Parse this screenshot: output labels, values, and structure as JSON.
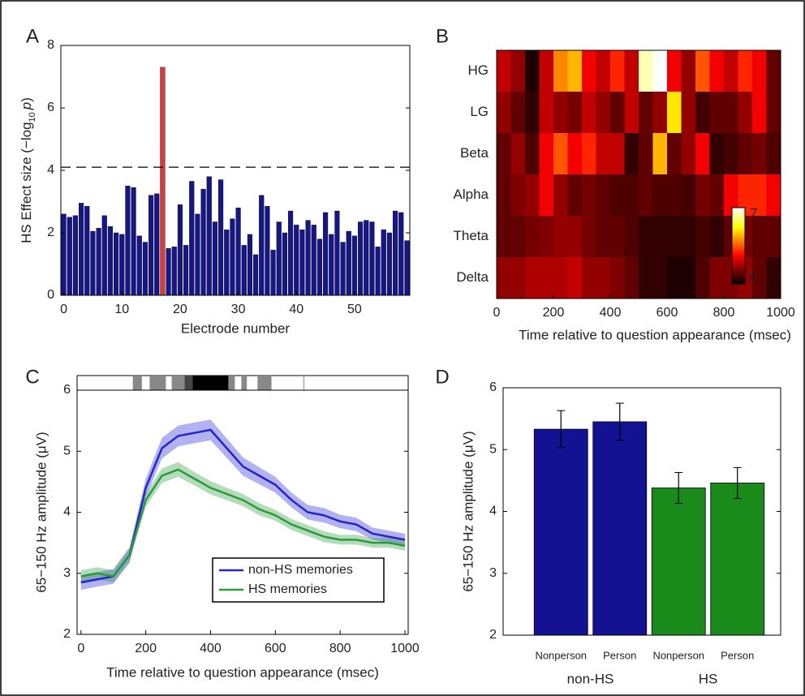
{
  "chart_data": [
    {
      "type": "bar",
      "panel_label": "A",
      "ylabel_parts": [
        "HS Effect size (−log",
        "10",
        "p",
        ")"
      ],
      "xlabel": "Electrode number",
      "x": [
        0,
        1,
        2,
        3,
        4,
        5,
        6,
        7,
        8,
        9,
        10,
        11,
        12,
        13,
        14,
        15,
        16,
        17,
        18,
        19,
        20,
        21,
        22,
        23,
        24,
        25,
        26,
        27,
        28,
        29,
        30,
        31,
        32,
        33,
        34,
        35,
        36,
        37,
        38,
        39,
        40,
        41,
        42,
        43,
        44,
        45,
        46,
        47,
        48,
        49,
        50,
        51,
        52,
        53,
        54,
        55,
        56,
        57,
        58,
        59
      ],
      "values": [
        2.6,
        2.5,
        2.55,
        2.95,
        2.85,
        2.05,
        2.15,
        2.55,
        2.2,
        2.0,
        1.95,
        3.5,
        3.45,
        1.9,
        1.7,
        3.2,
        3.25,
        7.3,
        1.5,
        1.55,
        2.9,
        1.6,
        3.65,
        2.6,
        3.4,
        3.8,
        2.35,
        3.7,
        2.1,
        2.45,
        2.8,
        1.6,
        1.95,
        1.3,
        3.2,
        2.85,
        1.45,
        2.35,
        2.0,
        2.7,
        2.25,
        2.1,
        2.4,
        2.25,
        1.8,
        2.65,
        1.95,
        2.7,
        1.7,
        2.05,
        1.9,
        2.35,
        2.4,
        2.35,
        1.55,
        2.1,
        2.0,
        2.7,
        2.65,
        1.75
      ],
      "colors": [
        "#15158c",
        "#15158c",
        "#15158c",
        "#15158c",
        "#15158c",
        "#15158c",
        "#15158c",
        "#15158c",
        "#15158c",
        "#15158c",
        "#15158c",
        "#15158c",
        "#15158c",
        "#15158c",
        "#15158c",
        "#15158c",
        "#15158c",
        "#d93a3a",
        "#15158c",
        "#15158c",
        "#15158c",
        "#15158c",
        "#15158c",
        "#15158c",
        "#15158c",
        "#15158c",
        "#15158c",
        "#15158c",
        "#15158c",
        "#15158c",
        "#15158c",
        "#15158c",
        "#15158c",
        "#15158c",
        "#15158c",
        "#15158c",
        "#15158c",
        "#15158c",
        "#15158c",
        "#15158c",
        "#15158c",
        "#15158c",
        "#15158c",
        "#15158c",
        "#15158c",
        "#15158c",
        "#15158c",
        "#15158c",
        "#15158c",
        "#15158c",
        "#15158c",
        "#15158c",
        "#15158c",
        "#15158c",
        "#15158c",
        "#15158c",
        "#15158c",
        "#15158c",
        "#15158c",
        "#15158c"
      ],
      "xlim": [
        -0.5,
        59.5
      ],
      "xticks": [
        0,
        10,
        20,
        30,
        40,
        50
      ],
      "ylim": [
        0,
        8
      ],
      "yticks": [
        0,
        2,
        4,
        6,
        8
      ],
      "threshold": 4.1
    },
    {
      "type": "heatmap",
      "panel_label": "B",
      "rows": [
        "HG",
        "LG",
        "Beta",
        "Alpha",
        "Theta",
        "Delta"
      ],
      "x": [
        0,
        50,
        100,
        150,
        200,
        250,
        300,
        350,
        400,
        450,
        500,
        550,
        600,
        650,
        700,
        750,
        800,
        850,
        900,
        950
      ],
      "values": [
        [
          2,
          1.5,
          0.3,
          2,
          4,
          4.5,
          2.5,
          2,
          3,
          2,
          6.5,
          7,
          2.5,
          1.5,
          3.5,
          2.5,
          2,
          3,
          2.5,
          1
        ],
        [
          1.5,
          1,
          0.5,
          2,
          1.5,
          1.2,
          2,
          1.5,
          1,
          2,
          1,
          1.5,
          5,
          1.5,
          0.7,
          1,
          1,
          1.5,
          2.5,
          1
        ],
        [
          1,
          1.5,
          0.8,
          2.5,
          3.5,
          2.5,
          3,
          2,
          2,
          0.5,
          1,
          4.5,
          1,
          1.5,
          2.5,
          0.5,
          0.7,
          1,
          1.2,
          0.8
        ],
        [
          1,
          1.3,
          1.5,
          2.5,
          1.5,
          1,
          1.2,
          1,
          0.8,
          0.8,
          1,
          0.8,
          0.8,
          0.7,
          1.2,
          1,
          2.5,
          3,
          3,
          2.5
        ],
        [
          1,
          1,
          1.2,
          1.3,
          1.5,
          1.5,
          1.2,
          1,
          1,
          0.8,
          0.5,
          0.5,
          0.5,
          0.5,
          0.7,
          0.5,
          1,
          1.2,
          1,
          1
        ],
        [
          1.5,
          1.5,
          1.8,
          1.8,
          1.8,
          2,
          1.5,
          1.5,
          1.3,
          1,
          0.5,
          0.5,
          0.3,
          0.3,
          0.8,
          1.3,
          1.3,
          1.5,
          1,
          0.5
        ]
      ],
      "xlim": [
        0,
        1000
      ],
      "xticks": [
        0,
        200,
        400,
        600,
        800,
        1000
      ],
      "xlabel": "Time relative to question appearance (msec)",
      "colormap": "hot",
      "colorbar": {
        "lim": [
          0,
          7
        ],
        "ticks": [
          0,
          7
        ]
      }
    },
    {
      "type": "line",
      "panel_label": "C",
      "x": [
        0,
        50,
        100,
        150,
        200,
        250,
        300,
        350,
        400,
        450,
        500,
        550,
        600,
        650,
        700,
        750,
        800,
        850,
        900,
        950,
        1000
      ],
      "series": [
        {
          "name": "non-HS memories",
          "color": "#2323d6",
          "values": [
            2.85,
            2.9,
            2.95,
            3.3,
            4.4,
            5.05,
            5.25,
            5.3,
            5.35,
            5.05,
            4.75,
            4.6,
            4.45,
            4.2,
            4.0,
            3.95,
            3.85,
            3.8,
            3.65,
            3.6,
            3.55
          ],
          "error": [
            0.12,
            0.12,
            0.12,
            0.13,
            0.15,
            0.17,
            0.17,
            0.17,
            0.17,
            0.16,
            0.15,
            0.14,
            0.13,
            0.12,
            0.12,
            0.12,
            0.11,
            0.11,
            0.1,
            0.1,
            0.1
          ]
        },
        {
          "name": "HS memories",
          "color": "#2a9a3a",
          "values": [
            2.95,
            3.0,
            2.95,
            3.3,
            4.2,
            4.6,
            4.7,
            4.55,
            4.4,
            4.3,
            4.2,
            4.05,
            3.95,
            3.8,
            3.7,
            3.6,
            3.55,
            3.55,
            3.5,
            3.5,
            3.45
          ],
          "error": [
            0.1,
            0.1,
            0.1,
            0.1,
            0.11,
            0.12,
            0.12,
            0.11,
            0.11,
            0.1,
            0.1,
            0.1,
            0.09,
            0.09,
            0.09,
            0.09,
            0.08,
            0.08,
            0.08,
            0.08,
            0.08
          ]
        }
      ],
      "xlim": [
        -12,
        1010
      ],
      "xticks": [
        0,
        200,
        400,
        600,
        800,
        1000
      ],
      "ylim": [
        2,
        6
      ],
      "yticks": [
        2,
        3,
        4,
        5,
        6
      ],
      "xlabel": "Time relative to question appearance (msec)",
      "ylabel": "65−150 Hz amplitude (μV)",
      "significance": [
        {
          "start": 160,
          "end": 188,
          "color": "#888888"
        },
        {
          "start": 212,
          "end": 262,
          "color": "#888888"
        },
        {
          "start": 280,
          "end": 320,
          "color": "#888888"
        },
        {
          "start": 320,
          "end": 345,
          "color": "#444444"
        },
        {
          "start": 345,
          "end": 455,
          "color": "#000000"
        },
        {
          "start": 455,
          "end": 475,
          "color": "#888888"
        },
        {
          "start": 495,
          "end": 512,
          "color": "#888888"
        },
        {
          "start": 545,
          "end": 588,
          "color": "#888888"
        },
        {
          "start": 686,
          "end": 690,
          "color": "#aaaaaa"
        }
      ],
      "legend": "lower right"
    },
    {
      "type": "bar",
      "panel_label": "D",
      "categories": [
        "Nonperson",
        "Person",
        "Nonperson",
        "Person"
      ],
      "group_labels": [
        "non-HS",
        "HS"
      ],
      "values": [
        5.33,
        5.45,
        4.38,
        4.46
      ],
      "errors": [
        0.3,
        0.3,
        0.25,
        0.25
      ],
      "colors": [
        "#121292",
        "#121292",
        "#1a8a1a",
        "#1a8a1a"
      ],
      "ylim": [
        2,
        6
      ],
      "yticks": [
        2,
        3,
        4,
        5,
        6
      ],
      "ylabel": "65−150 Hz amplitude (μV)"
    }
  ]
}
